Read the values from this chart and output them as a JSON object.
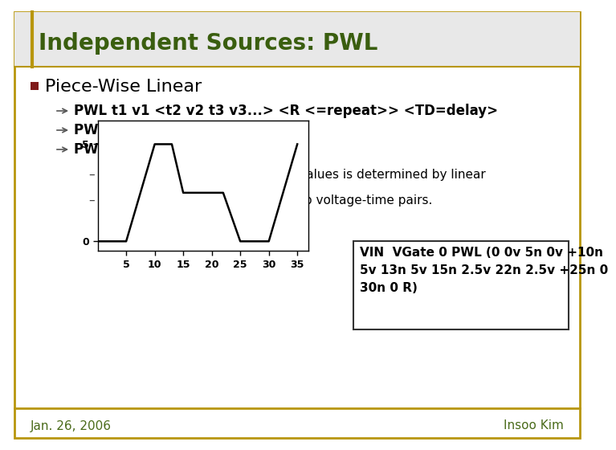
{
  "title": "Independent Sources: PWL",
  "title_color": "#3a5e0f",
  "title_fontsize": 20,
  "bg_color": "#ffffff",
  "border_color": "#b8960c",
  "bullet_main": "Piece-Wise Linear",
  "bullet_main_fontsize": 16,
  "bullet_sq_color": "#7f1a1a",
  "sub_bullets": [
    "PWL t1 v1 <t2 v2 t3 v3...> <R <=repeat>> <TD=delay>",
    "PWL (t1 v1 <options>)",
    "PWL t1 I1 <t2 I2...> <options>"
  ],
  "sub_bullet_fontsize": 12,
  "sub_sub_bullets": [
    "Value of source at intermediate values is determined by linear\ninterpolation.",
    "PL (ASPEC style) reverses order to voltage-time pairs."
  ],
  "sub_sub_fontsize": 11,
  "pwl_times": [
    0,
    5,
    10,
    13,
    15,
    22,
    25,
    30,
    35
  ],
  "pwl_values": [
    0,
    0,
    5,
    5,
    2.5,
    2.5,
    0,
    0,
    5
  ],
  "plot_xticks": [
    5,
    10,
    15,
    20,
    25,
    30,
    35
  ],
  "plot_yticks": [
    0,
    5
  ],
  "plot_xlim": [
    0,
    37
  ],
  "plot_ylim": [
    -0.5,
    6.2
  ],
  "annotation_text": "VIN  VGate 0 PWL (0 0v 5n 0v +10n\n5v 13n 5v 15n 2.5v 22n 2.5v +25n 0\n30n 0 R)",
  "annotation_fontsize": 11,
  "footer_left": "Jan. 26, 2006",
  "footer_right": "Insoo Kim",
  "footer_color": "#4a6b1a",
  "footer_fontsize": 11
}
